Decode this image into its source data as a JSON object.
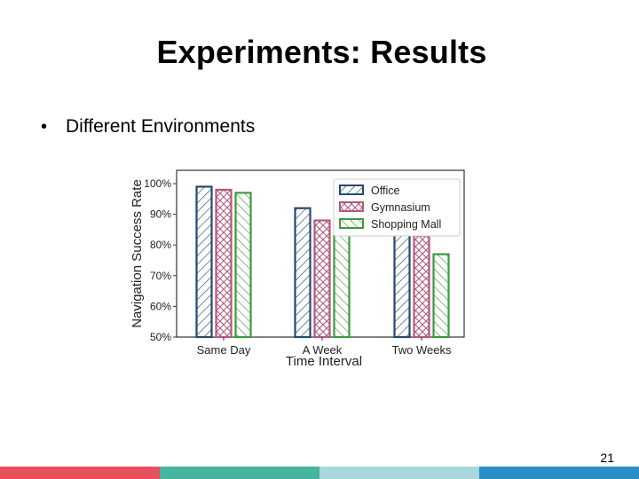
{
  "slide": {
    "title": "Experiments: Results",
    "bullet": "Different Environments",
    "number": "21"
  },
  "footer_colors": [
    "#e8505b",
    "#45b39d",
    "#a8d8dc",
    "#2a8ec9"
  ],
  "chart_data": {
    "type": "bar",
    "categories": [
      "Same Day",
      "A Week",
      "Two Weeks"
    ],
    "xlabel": "Time Interval",
    "ylabel": "Navigation Success Rate",
    "ylim": [
      50,
      100
    ],
    "yticks": [
      "50%",
      "60%",
      "70%",
      "80%",
      "90%",
      "100%"
    ],
    "legend_position": "top-right",
    "series": [
      {
        "name": "Office",
        "color": "#244a6b",
        "pattern": "diagonal",
        "values": [
          99,
          92,
          85
        ]
      },
      {
        "name": "Gymnasium",
        "color": "#b15a7d",
        "pattern": "crosshatch",
        "values": [
          98,
          88,
          83
        ]
      },
      {
        "name": "Shopping Mall",
        "color": "#3d9a3d",
        "pattern": "reverse-diagonal",
        "values": [
          97,
          84,
          77
        ]
      }
    ]
  }
}
